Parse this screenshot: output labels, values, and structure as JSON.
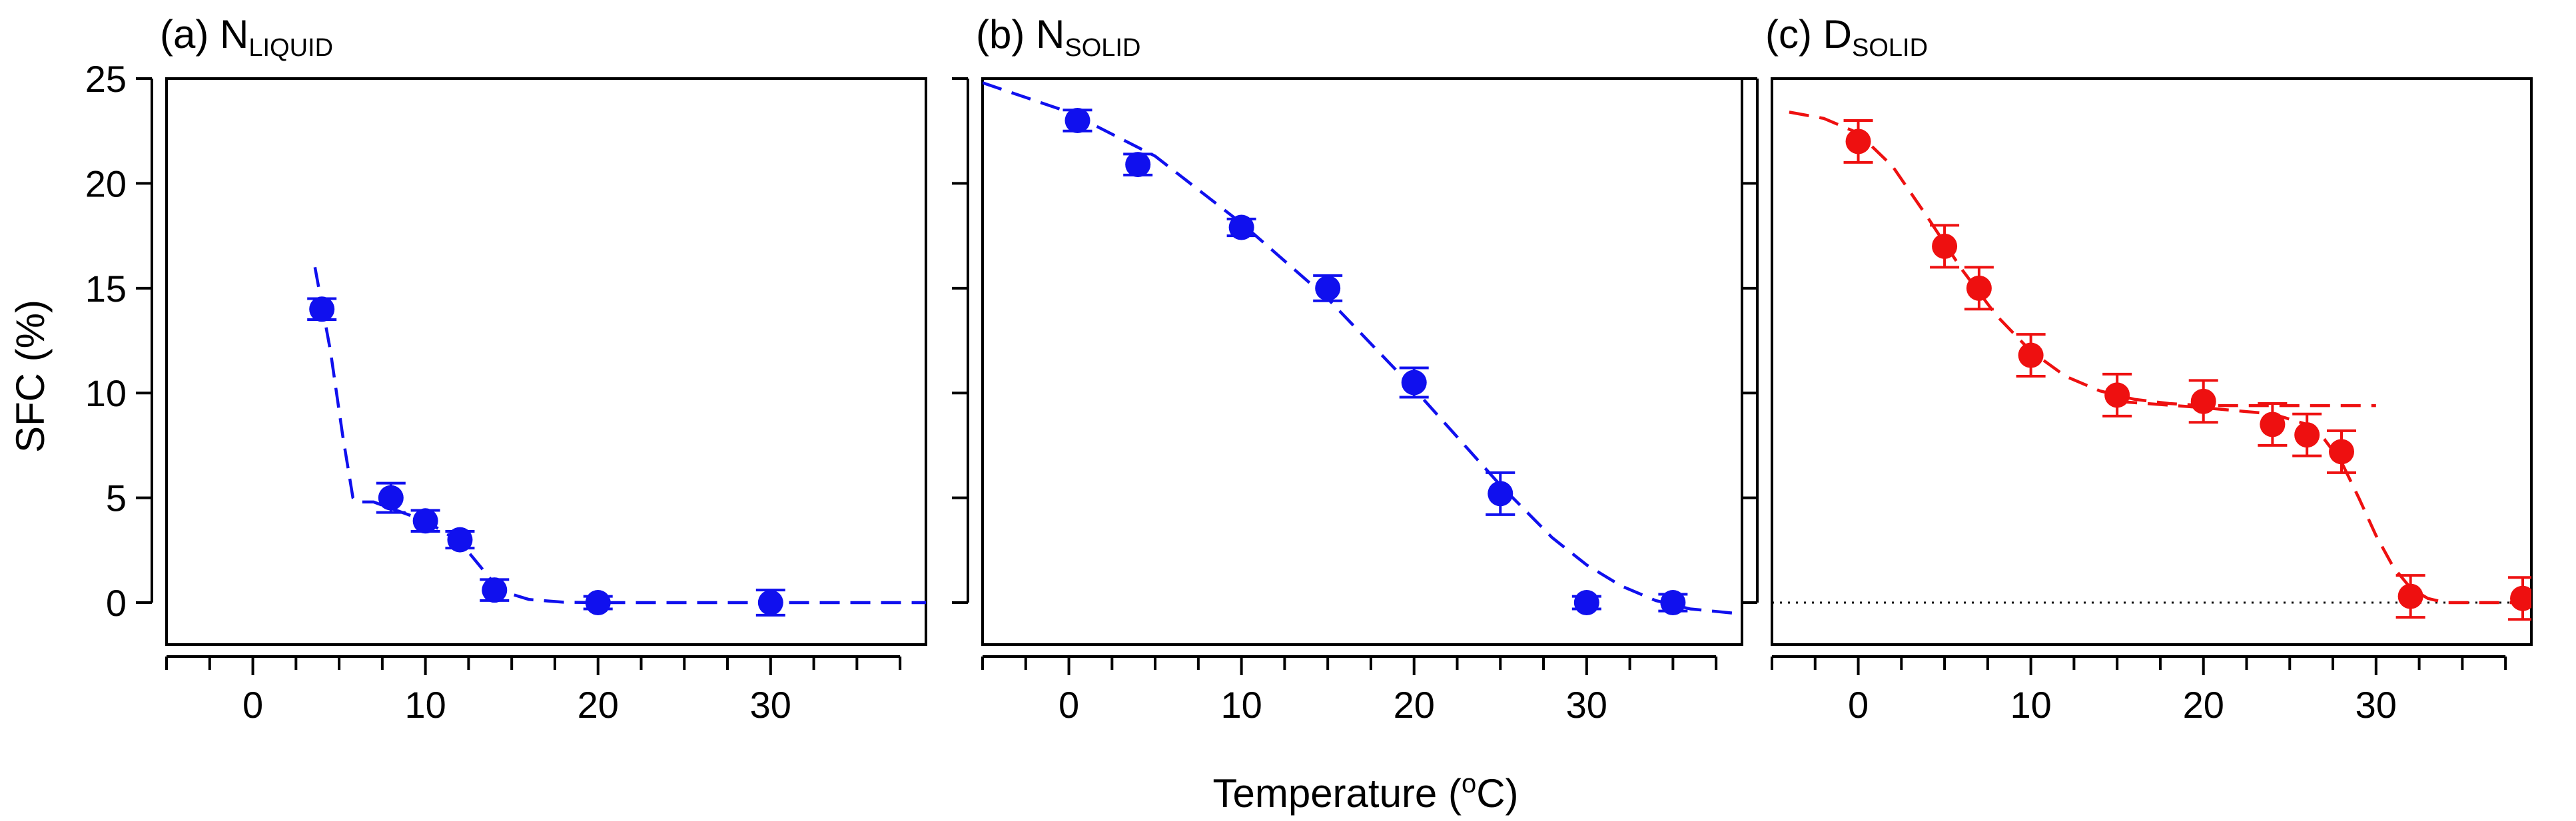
{
  "figure": {
    "ylabel": "SFC (%)",
    "xlabel_text": "Temperature (",
    "xlabel_sup": "o",
    "xlabel_end": "C)"
  },
  "chart_data": [
    {
      "type": "scatter",
      "panel_prefix": "(a) N",
      "panel_sub": "LIQUID",
      "title": "(a) NLIQUID",
      "xlim": [
        -5,
        39
      ],
      "ylim": [
        -2,
        25
      ],
      "xticks": [
        0,
        10,
        20,
        30
      ],
      "yticks": [
        0,
        5,
        10,
        15,
        20,
        25
      ],
      "color": "#1010ee",
      "points": [
        {
          "x": 4,
          "y": 14.0,
          "err": 0.5
        },
        {
          "x": 8,
          "y": 5.0,
          "err": 0.7
        },
        {
          "x": 10,
          "y": 3.9,
          "err": 0.5
        },
        {
          "x": 12,
          "y": 3.0,
          "err": 0.4
        },
        {
          "x": 14,
          "y": 0.6,
          "err": 0.5
        },
        {
          "x": 20,
          "y": 0.0,
          "err": 0.3
        },
        {
          "x": 30,
          "y": 0.0,
          "err": 0.6
        }
      ],
      "fit": [
        [
          3.6,
          16.0
        ],
        [
          4.5,
          12.0
        ],
        [
          5.2,
          8.0
        ],
        [
          5.8,
          5.0
        ],
        [
          6.0,
          4.8
        ],
        [
          7.0,
          4.8
        ],
        [
          8.0,
          4.5
        ],
        [
          10.0,
          3.9
        ],
        [
          12.0,
          2.9
        ],
        [
          13.0,
          1.9
        ],
        [
          14.0,
          0.9
        ],
        [
          15.0,
          0.4
        ],
        [
          16.0,
          0.15
        ],
        [
          18.0,
          0.02
        ],
        [
          20.0,
          0.0
        ],
        [
          39.0,
          0.0
        ]
      ]
    },
    {
      "type": "scatter",
      "panel_prefix": "(b) N",
      "panel_sub": "SOLID",
      "title": "(b) NSOLID",
      "xlim": [
        -5,
        39
      ],
      "ylim": [
        -2,
        25
      ],
      "xticks": [
        0,
        10,
        20,
        30
      ],
      "yticks": [
        0,
        5,
        10,
        15,
        20,
        25
      ],
      "color": "#1010ee",
      "points": [
        {
          "x": 0.5,
          "y": 23.0,
          "err": 0.5
        },
        {
          "x": 4,
          "y": 20.9,
          "err": 0.5
        },
        {
          "x": 10,
          "y": 17.9,
          "err": 0.4
        },
        {
          "x": 15,
          "y": 15.0,
          "err": 0.6
        },
        {
          "x": 20,
          "y": 10.5,
          "err": 0.7
        },
        {
          "x": 25,
          "y": 5.2,
          "err": 1.0
        },
        {
          "x": 30,
          "y": 0.0,
          "err": 0.3
        },
        {
          "x": 35,
          "y": 0.0,
          "err": 0.4
        }
      ],
      "fit": [
        [
          -5.0,
          24.8
        ],
        [
          0.0,
          23.4
        ],
        [
          5.0,
          21.3
        ],
        [
          10.0,
          18.1
        ],
        [
          15.0,
          14.5
        ],
        [
          20.0,
          10.2
        ],
        [
          25.0,
          5.6
        ],
        [
          28.0,
          3.1
        ],
        [
          30.0,
          1.8
        ],
        [
          32.0,
          0.8
        ],
        [
          34.0,
          0.1
        ],
        [
          36.0,
          -0.3
        ],
        [
          38.5,
          -0.5
        ]
      ]
    },
    {
      "type": "scatter",
      "panel_prefix": "(c) D",
      "panel_sub": "SOLID",
      "title": "(c) DSOLID",
      "xlim": [
        -5,
        39
      ],
      "ylim": [
        -2,
        25
      ],
      "xticks": [
        0,
        10,
        20,
        30
      ],
      "yticks": [
        0,
        5,
        10,
        15,
        20,
        25
      ],
      "color": "#ee1010",
      "reference_line_y": 0,
      "points": [
        {
          "x": 0,
          "y": 22.0,
          "err": 1.0
        },
        {
          "x": 5,
          "y": 17.0,
          "err": 1.0
        },
        {
          "x": 7,
          "y": 15.0,
          "err": 1.0
        },
        {
          "x": 10,
          "y": 11.8,
          "err": 1.0
        },
        {
          "x": 15,
          "y": 9.9,
          "err": 1.0
        },
        {
          "x": 20,
          "y": 9.6,
          "err": 1.0
        },
        {
          "x": 24,
          "y": 8.5,
          "err": 1.0
        },
        {
          "x": 26,
          "y": 8.0,
          "err": 1.0
        },
        {
          "x": 28,
          "y": 7.2,
          "err": 1.0
        },
        {
          "x": 32,
          "y": 0.3,
          "err": 1.0
        },
        {
          "x": 38.5,
          "y": 0.2,
          "err": 1.0
        }
      ],
      "fit": [
        [
          -4.0,
          23.4
        ],
        [
          -2.0,
          23.1
        ],
        [
          0.0,
          22.4
        ],
        [
          2.0,
          20.8
        ],
        [
          4.0,
          18.4
        ],
        [
          6.0,
          15.9
        ],
        [
          8.0,
          13.7
        ],
        [
          10.0,
          12.0
        ],
        [
          12.0,
          10.8
        ],
        [
          14.0,
          10.1
        ],
        [
          16.0,
          9.7
        ],
        [
          18.0,
          9.5
        ],
        [
          20.0,
          9.4
        ],
        [
          30.0,
          9.4
        ]
      ],
      "fit2": [
        [
          15.0,
          9.6
        ],
        [
          20.0,
          9.3
        ],
        [
          24.0,
          9.0
        ],
        [
          26.0,
          8.5
        ],
        [
          27.0,
          7.8
        ],
        [
          28.0,
          6.7
        ],
        [
          29.0,
          5.0
        ],
        [
          30.0,
          3.2
        ],
        [
          31.0,
          1.7
        ],
        [
          32.0,
          0.7
        ],
        [
          33.0,
          0.2
        ],
        [
          34.0,
          0.0
        ],
        [
          39.0,
          0.0
        ]
      ]
    }
  ]
}
